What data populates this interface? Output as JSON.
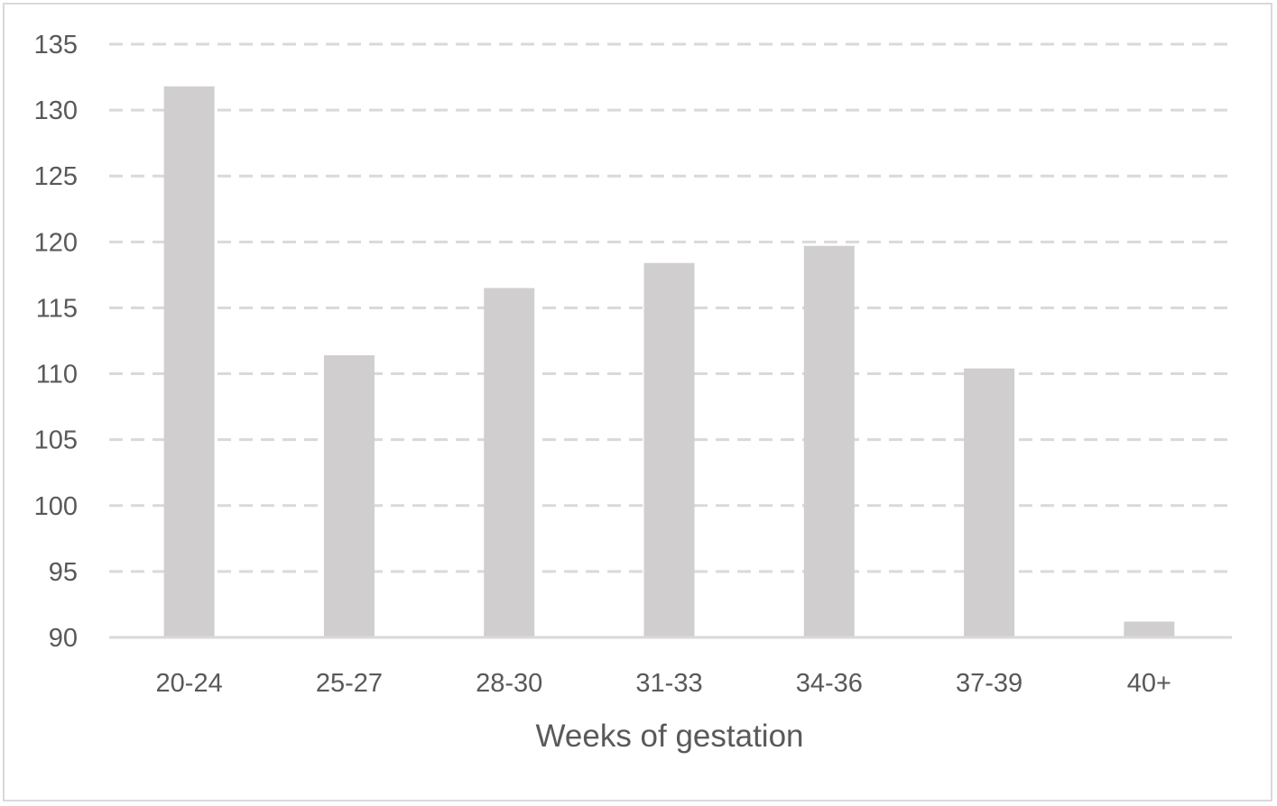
{
  "chart_data": {
    "type": "bar",
    "title": "",
    "xlabel": "Weeks of gestation",
    "ylabel": "",
    "categories": [
      "20-24",
      "25-27",
      "28-30",
      "31-33",
      "34-36",
      "37-39",
      "40+"
    ],
    "values": [
      131.8,
      111.4,
      116.5,
      118.4,
      119.7,
      110.4,
      91.2
    ],
    "ylim": [
      90,
      135
    ],
    "yticks": [
      "90",
      "95",
      "100",
      "105",
      "110",
      "115",
      "120",
      "125",
      "130",
      "135"
    ],
    "grid": "horizontal dashed",
    "legend": "none",
    "colors": {
      "bar": "#d0cece",
      "grid": "#d9d9d9",
      "axis": "#d9d9d9",
      "text": "#595959"
    }
  }
}
